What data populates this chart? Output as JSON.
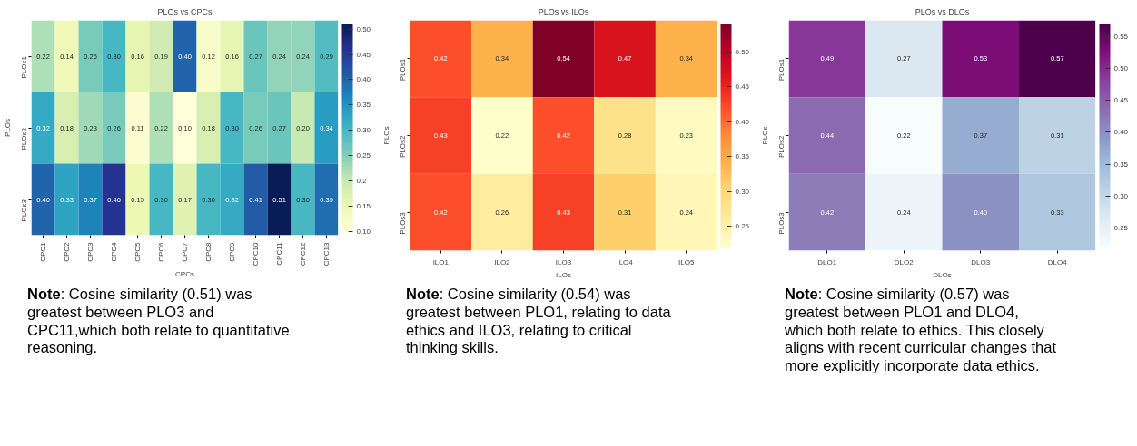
{
  "chart_data": [
    {
      "type": "heatmap",
      "title": "PLOs vs CPCs",
      "xlabel": "CPCs",
      "ylabel": "PLOs",
      "categories": [
        "CPC1",
        "CPC2",
        "CPC3",
        "CPC4",
        "CPC5",
        "CPC6",
        "CPC7",
        "CPC8",
        "CPC9",
        "CPC10",
        "CPC11",
        "CPC12",
        "CPC13"
      ],
      "y_categories": [
        "PLOs1",
        "PLOs2",
        "PLOs3"
      ],
      "cells": [
        [
          0.22,
          0.14,
          0.26,
          0.3,
          0.16,
          0.19,
          0.4,
          0.12,
          0.16,
          0.27,
          0.24,
          0.24,
          0.29
        ],
        [
          0.32,
          0.18,
          0.23,
          0.26,
          0.11,
          0.22,
          0.1,
          0.18,
          0.3,
          0.26,
          0.27,
          0.2,
          0.34
        ],
        [
          0.4,
          0.33,
          0.37,
          0.46,
          0.15,
          0.3,
          0.17,
          0.3,
          0.32,
          0.41,
          0.51,
          0.3,
          0.39
        ]
      ],
      "cell_labels": [
        [
          "0.22",
          "0.14",
          "0.26",
          "0.30",
          "0.16",
          "0.19",
          "0.40",
          "0.12",
          "0.16",
          "0.27",
          "0.24",
          "0.24",
          "0.29"
        ],
        [
          "0.32",
          "0.18",
          "0.23",
          "0.26",
          "0.11",
          "0.22",
          "0.10",
          "0.18",
          "0.30",
          "0.26",
          "0.27",
          "0.20",
          "0.34"
        ],
        [
          "0.40",
          "0.33",
          "0.37",
          "0.46",
          "0.15",
          "0.30",
          "0.17",
          "0.30",
          "0.32",
          "0.41",
          "0.51",
          "0.30",
          "0.39"
        ]
      ],
      "clim": [
        0.1,
        0.51
      ],
      "cticks": [
        {
          "value": 0.1,
          "label": "0.10"
        },
        0.15,
        0.2,
        0.25,
        {
          "value": 0.3,
          "label": "0.30"
        },
        0.35,
        {
          "value": 0.4,
          "label": "0.40"
        },
        0.45,
        {
          "value": 0.5,
          "label": "0.50"
        }
      ],
      "annotations": [
        "Note: Cosine similarity (0.51) was greatest between PLO3 and CPC11,which both relate to quantitative reasoning."
      ]
    },
    {
      "type": "heatmap",
      "title": "PLOs vs ILOs",
      "xlabel": "ILOs",
      "ylabel": "PLOs",
      "categories": [
        "ILO1",
        "ILO2",
        "ILO3",
        "ILO4",
        "ILO5"
      ],
      "y_categories": [
        "PLOs1",
        "PLOs2",
        "PLOs3"
      ],
      "cells": [
        [
          0.42,
          0.34,
          0.54,
          0.47,
          0.34
        ],
        [
          0.43,
          0.22,
          0.42,
          0.28,
          0.23
        ],
        [
          0.42,
          0.26,
          0.43,
          0.31,
          0.24
        ]
      ],
      "cell_labels": [
        [
          "0.42",
          "0.34",
          "0.54",
          "0.47",
          "0.34"
        ],
        [
          "0.43",
          "0.22",
          "0.42",
          "0.28",
          "0.23"
        ],
        [
          "0.42",
          "0.26",
          "0.43",
          "0.31",
          "0.24"
        ]
      ],
      "clim": [
        0.22,
        0.54
      ],
      "cticks": [
        0.25,
        {
          "value": 0.3,
          "label": "0.30"
        },
        0.35,
        {
          "value": 0.4,
          "label": "0.40"
        },
        0.45,
        {
          "value": 0.5,
          "label": "0.50"
        }
      ],
      "annotations": [
        "Note: Cosine similarity (0.54) was greatest between PLO1, relating to data ethics and ILO3, relating to critical thinking skills."
      ]
    },
    {
      "type": "heatmap",
      "title": "PLOs vs DLOs",
      "xlabel": "DLOs",
      "ylabel": "PLOs",
      "categories": [
        "DLO1",
        "DLO2",
        "DLO3",
        "DLO4"
      ],
      "y_categories": [
        "PLOs1",
        "PLOs2",
        "PLOs3"
      ],
      "cells": [
        [
          0.49,
          0.27,
          0.53,
          0.57
        ],
        [
          0.44,
          0.22,
          0.37,
          0.31
        ],
        [
          0.42,
          0.24,
          0.4,
          0.33
        ]
      ],
      "cell_labels": [
        [
          "0.49",
          "0.27",
          "0.53",
          "0.57"
        ],
        [
          "0.44",
          "0.22",
          "0.37",
          "0.31"
        ],
        [
          "0.42",
          "0.24",
          "0.40",
          "0.33"
        ]
      ],
      "clim": [
        0.22,
        0.57
      ],
      "cticks": [
        0.25,
        {
          "value": 0.3,
          "label": "0.30"
        },
        0.35,
        {
          "value": 0.4,
          "label": "0.40"
        },
        0.45,
        {
          "value": 0.5,
          "label": "0.50"
        },
        0.55
      ],
      "annotations": [
        "Note: Cosine similarity (0.57) was greatest between PLO1 and DLO4, which both relate to ethics. This closely aligns with recent curricular changes that more explicitly incorporate data ethics."
      ]
    }
  ]
}
